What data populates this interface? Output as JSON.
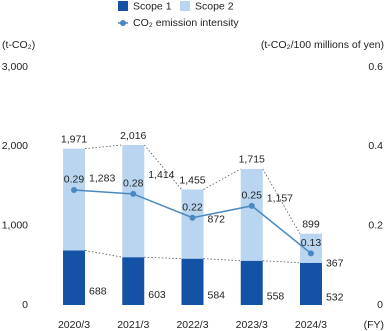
{
  "chart_data": {
    "type": "stacked-bar-line",
    "y_label": "(t-CO₂)",
    "y2_label": "(t-CO₂/100 millions of yen)",
    "x_label": "(FY)",
    "categories": [
      "2020/3",
      "2021/3",
      "2022/3",
      "2023/3",
      "2024/3"
    ],
    "series": [
      {
        "name": "Scope 1",
        "color": "#1452a6",
        "values": [
          688,
          603,
          584,
          558,
          532
        ]
      },
      {
        "name": "Scope 2",
        "color": "#b9d5f0",
        "values": [
          1283,
          1414,
          872,
          1157,
          367
        ],
        "value_labels": [
          "1,283",
          "1,414",
          "872",
          "1,157",
          "367"
        ]
      },
      {
        "name": "CO₂ emission intensity",
        "color": "#4a88c2",
        "axis": "y2",
        "values": [
          0.29,
          0.28,
          0.22,
          0.25,
          0.13
        ]
      }
    ],
    "totals": {
      "values": [
        1971,
        2016,
        1455,
        1715,
        899
      ],
      "value_labels": [
        "1,971",
        "2,016",
        "1,455",
        "1,715",
        "899"
      ]
    },
    "ylim": [
      0,
      3000
    ],
    "yticks": [
      0,
      {
        "value": 1000,
        "label": "1,000"
      },
      {
        "value": 2000,
        "label": "2,000"
      },
      {
        "value": 3000,
        "label": "3,000"
      }
    ],
    "y2lim": [
      0,
      0.6
    ],
    "y2ticks": [
      0,
      0.2,
      0.4,
      0.6
    ],
    "grid": false
  }
}
